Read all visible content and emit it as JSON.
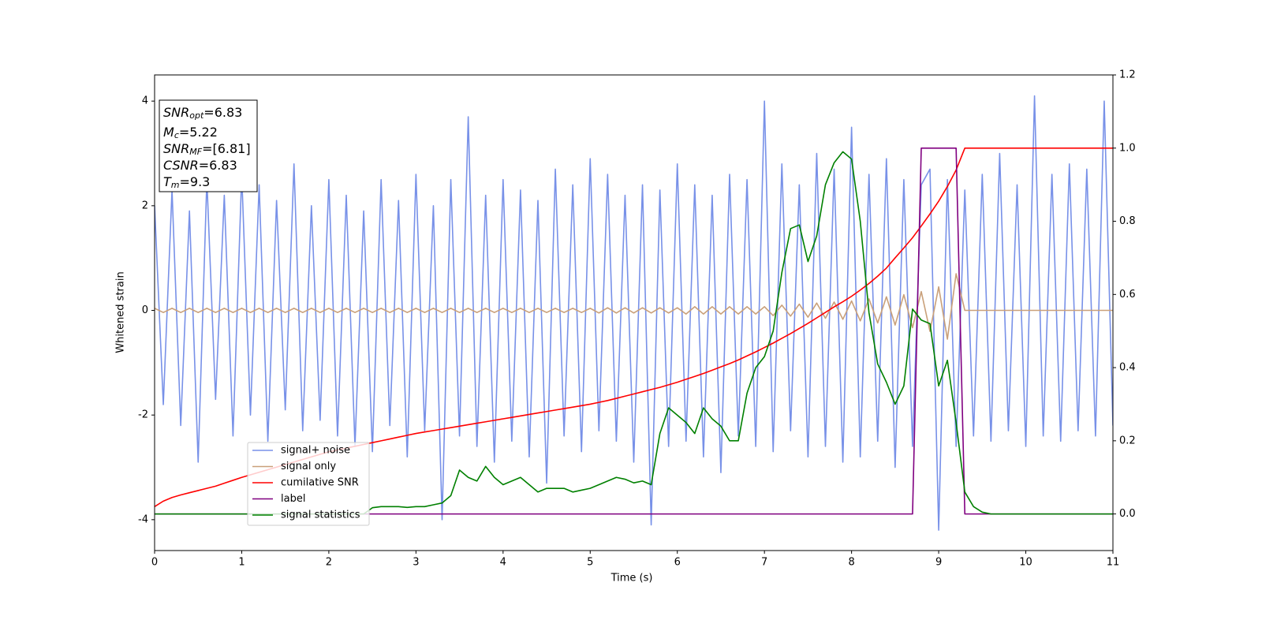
{
  "chart_data": {
    "type": "line",
    "x_label": "Time (s)",
    "y_label": "Whitened strain",
    "xlim": [
      0,
      11
    ],
    "xticks": [
      0,
      1,
      2,
      3,
      4,
      5,
      6,
      7,
      8,
      9,
      10,
      11
    ],
    "ylim": [
      -4.59,
      4.5
    ],
    "yticks": [
      -4,
      -2,
      0,
      2,
      4
    ],
    "y2lim": [
      -0.1,
      1.2
    ],
    "y2ticks": [
      {
        "value": 0,
        "label": "0.0"
      },
      0.2,
      0.4,
      0.6,
      0.8,
      {
        "value": 1,
        "label": "1.0"
      },
      1.2
    ],
    "legend_loc": "lower left",
    "annotations": [
      {
        "name": "SNR",
        "sub": "opt",
        "text": "=6.83"
      },
      {
        "name": "M",
        "sub": "c",
        "text": "=5.22"
      },
      {
        "name": "SNR",
        "sub": "MF",
        "text": "=[6.81]"
      },
      {
        "name": "CSNR",
        "sub": null,
        "text": "=6.83"
      },
      {
        "name": "T",
        "sub": "m",
        "text": "=9.3"
      }
    ],
    "x": [
      0,
      0.1,
      0.2,
      0.3,
      0.4,
      0.5,
      0.6,
      0.7,
      0.8,
      0.9,
      1,
      1.1,
      1.2,
      1.3,
      1.4,
      1.5,
      1.6,
      1.7,
      1.8,
      1.9,
      2,
      2.1,
      2.2,
      2.3,
      2.4,
      2.5,
      2.6,
      2.7,
      2.8,
      2.9,
      3,
      3.1,
      3.2,
      3.3,
      3.4,
      3.5,
      3.6,
      3.7,
      3.8,
      3.9,
      4,
      4.1,
      4.2,
      4.3,
      4.4,
      4.5,
      4.6,
      4.7,
      4.8,
      4.9,
      5,
      5.1,
      5.2,
      5.3,
      5.4,
      5.5,
      5.6,
      5.7,
      5.8,
      5.9,
      6,
      6.1,
      6.2,
      6.3,
      6.4,
      6.5,
      6.6,
      6.7,
      6.8,
      6.9,
      7,
      7.1,
      7.2,
      7.3,
      7.4,
      7.5,
      7.6,
      7.7,
      7.8,
      7.9,
      8,
      8.1,
      8.2,
      8.3,
      8.4,
      8.5,
      8.6,
      8.7,
      8.8,
      8.9,
      9,
      9.1,
      9.2,
      9.3,
      9.4,
      9.5,
      9.6,
      9.7,
      9.8,
      9.9,
      10,
      10.1,
      10.2,
      10.3,
      10.4,
      10.5,
      10.6,
      10.7,
      10.8,
      10.9,
      11
    ],
    "series": [
      {
        "name": "signal+ noise",
        "color": "#7891e8",
        "axis": "y",
        "values": [
          2.0,
          -1.8,
          2.3,
          -2.2,
          1.9,
          -2.9,
          2.5,
          -1.7,
          2.2,
          -2.4,
          2.6,
          -2.0,
          2.4,
          -2.5,
          2.1,
          -1.9,
          2.8,
          -2.3,
          2.0,
          -2.1,
          2.5,
          -2.4,
          2.2,
          -2.6,
          1.9,
          -2.7,
          2.5,
          -2.2,
          2.1,
          -2.8,
          2.6,
          -2.3,
          2.0,
          -4.0,
          2.5,
          -2.4,
          3.7,
          -2.6,
          2.2,
          -2.9,
          2.5,
          -2.5,
          2.3,
          -2.8,
          2.1,
          -3.3,
          2.7,
          -2.4,
          2.4,
          -2.7,
          2.9,
          -2.3,
          2.6,
          -2.5,
          2.2,
          -2.9,
          2.4,
          -4.1,
          2.3,
          -2.6,
          2.8,
          -2.5,
          2.4,
          -2.8,
          2.2,
          -3.1,
          2.6,
          -2.4,
          2.5,
          -2.6,
          4.0,
          -2.7,
          2.8,
          -2.3,
          2.4,
          -2.8,
          3.0,
          -2.6,
          2.7,
          -2.9,
          3.5,
          -2.8,
          2.6,
          -2.5,
          2.9,
          -3.0,
          2.5,
          -2.6,
          2.4,
          2.7,
          -4.2,
          2.5,
          -2.6,
          2.3,
          -2.4,
          2.6,
          -2.5,
          3.0,
          -2.3,
          2.4,
          -2.6,
          4.1,
          -2.4,
          2.6,
          -2.5,
          2.8,
          -2.3,
          2.7,
          -2.4,
          4.0,
          -2.2
        ]
      },
      {
        "name": "signal only",
        "color": "#c9a07a",
        "axis": "y",
        "values": [
          0.04,
          -0.04,
          0.04,
          -0.04,
          0.04,
          -0.04,
          0.04,
          -0.04,
          0.04,
          -0.04,
          0.04,
          -0.04,
          0.04,
          -0.04,
          0.04,
          -0.04,
          0.04,
          -0.04,
          0.04,
          -0.04,
          0.04,
          -0.04,
          0.04,
          -0.04,
          0.04,
          -0.04,
          0.04,
          -0.04,
          0.04,
          -0.04,
          0.04,
          -0.04,
          0.04,
          -0.04,
          0.04,
          -0.04,
          0.04,
          -0.04,
          0.04,
          -0.04,
          0.04,
          -0.04,
          0.04,
          -0.04,
          0.04,
          -0.04,
          0.04,
          -0.04,
          0.04,
          -0.04,
          0.04,
          -0.05,
          0.05,
          -0.05,
          0.05,
          -0.05,
          0.05,
          -0.05,
          0.05,
          -0.05,
          0.05,
          -0.07,
          0.07,
          -0.07,
          0.07,
          -0.07,
          0.07,
          -0.07,
          0.07,
          -0.07,
          0.07,
          -0.1,
          0.1,
          -0.11,
          0.12,
          -0.13,
          0.14,
          -0.15,
          0.16,
          -0.17,
          0.18,
          -0.2,
          0.22,
          -0.24,
          0.26,
          -0.28,
          0.3,
          -0.33,
          0.36,
          -0.4,
          0.45,
          -0.55,
          0.7,
          0,
          0,
          0,
          0,
          0,
          0,
          0,
          0,
          0,
          0,
          0,
          0,
          0,
          0,
          0,
          0,
          0,
          0
        ]
      },
      {
        "name": "cumilative SNR",
        "color": "#ff0000",
        "axis": "y2",
        "values": [
          0.02,
          0.035,
          0.045,
          0.052,
          0.058,
          0.064,
          0.07,
          0.076,
          0.084,
          0.092,
          0.1,
          0.107,
          0.114,
          0.121,
          0.128,
          0.135,
          0.142,
          0.149,
          0.156,
          0.163,
          0.17,
          0.175,
          0.18,
          0.185,
          0.19,
          0.195,
          0.2,
          0.205,
          0.21,
          0.215,
          0.22,
          0.224,
          0.228,
          0.232,
          0.236,
          0.24,
          0.244,
          0.248,
          0.252,
          0.256,
          0.26,
          0.264,
          0.268,
          0.272,
          0.276,
          0.28,
          0.284,
          0.288,
          0.292,
          0.296,
          0.3,
          0.305,
          0.31,
          0.316,
          0.322,
          0.328,
          0.334,
          0.34,
          0.346,
          0.353,
          0.36,
          0.368,
          0.376,
          0.384,
          0.393,
          0.402,
          0.411,
          0.421,
          0.432,
          0.443,
          0.455,
          0.467,
          0.48,
          0.493,
          0.507,
          0.521,
          0.536,
          0.551,
          0.566,
          0.58,
          0.595,
          0.612,
          0.63,
          0.65,
          0.672,
          0.7,
          0.727,
          0.755,
          0.787,
          0.82,
          0.855,
          0.895,
          0.94,
          1,
          1,
          1,
          1,
          1,
          1,
          1,
          1,
          1,
          1,
          1,
          1,
          1,
          1,
          1,
          1,
          1,
          1
        ]
      },
      {
        "name": "label",
        "color": "#800080",
        "axis": "y2",
        "values": [
          0,
          0,
          0,
          0,
          0,
          0,
          0,
          0,
          0,
          0,
          0,
          0,
          0,
          0,
          0,
          0,
          0,
          0,
          0,
          0,
          0,
          0,
          0,
          0,
          0,
          0,
          0,
          0,
          0,
          0,
          0,
          0,
          0,
          0,
          0,
          0,
          0,
          0,
          0,
          0,
          0,
          0,
          0,
          0,
          0,
          0,
          0,
          0,
          0,
          0,
          0,
          0,
          0,
          0,
          0,
          0,
          0,
          0,
          0,
          0,
          0,
          0,
          0,
          0,
          0,
          0,
          0,
          0,
          0,
          0,
          0,
          0,
          0,
          0,
          0,
          0,
          0,
          0,
          0,
          0,
          0,
          0,
          0,
          0,
          0,
          0,
          0,
          0,
          1,
          1,
          1,
          1,
          1,
          0,
          0,
          0,
          0,
          0,
          0,
          0,
          0,
          0,
          0,
          0,
          0,
          0,
          0,
          0,
          0,
          0,
          0
        ]
      },
      {
        "name": "signal statistics",
        "color": "#008000",
        "axis": "y2",
        "values": [
          0,
          0,
          0,
          0,
          0,
          0,
          0,
          0,
          0,
          0,
          0,
          0,
          0,
          0,
          0,
          0,
          0,
          0,
          0,
          0,
          0,
          0,
          0,
          0,
          0,
          0.017,
          0.02,
          0.02,
          0.02,
          0.018,
          0.02,
          0.02,
          0.025,
          0.03,
          0.05,
          0.12,
          0.1,
          0.09,
          0.13,
          0.1,
          0.08,
          0.09,
          0.1,
          0.08,
          0.06,
          0.07,
          0.07,
          0.07,
          0.06,
          0.065,
          0.07,
          0.08,
          0.09,
          0.1,
          0.095,
          0.085,
          0.09,
          0.08,
          0.22,
          0.29,
          0.27,
          0.25,
          0.22,
          0.29,
          0.26,
          0.24,
          0.2,
          0.2,
          0.33,
          0.4,
          0.43,
          0.5,
          0.66,
          0.78,
          0.79,
          0.69,
          0.76,
          0.9,
          0.96,
          0.99,
          0.97,
          0.8,
          0.55,
          0.41,
          0.36,
          0.3,
          0.35,
          0.56,
          0.53,
          0.52,
          0.35,
          0.42,
          0.25,
          0.06,
          0.02,
          0.005,
          0,
          0,
          0,
          0,
          0,
          0,
          0,
          0,
          0,
          0,
          0,
          0,
          0,
          0,
          0
        ]
      }
    ]
  }
}
